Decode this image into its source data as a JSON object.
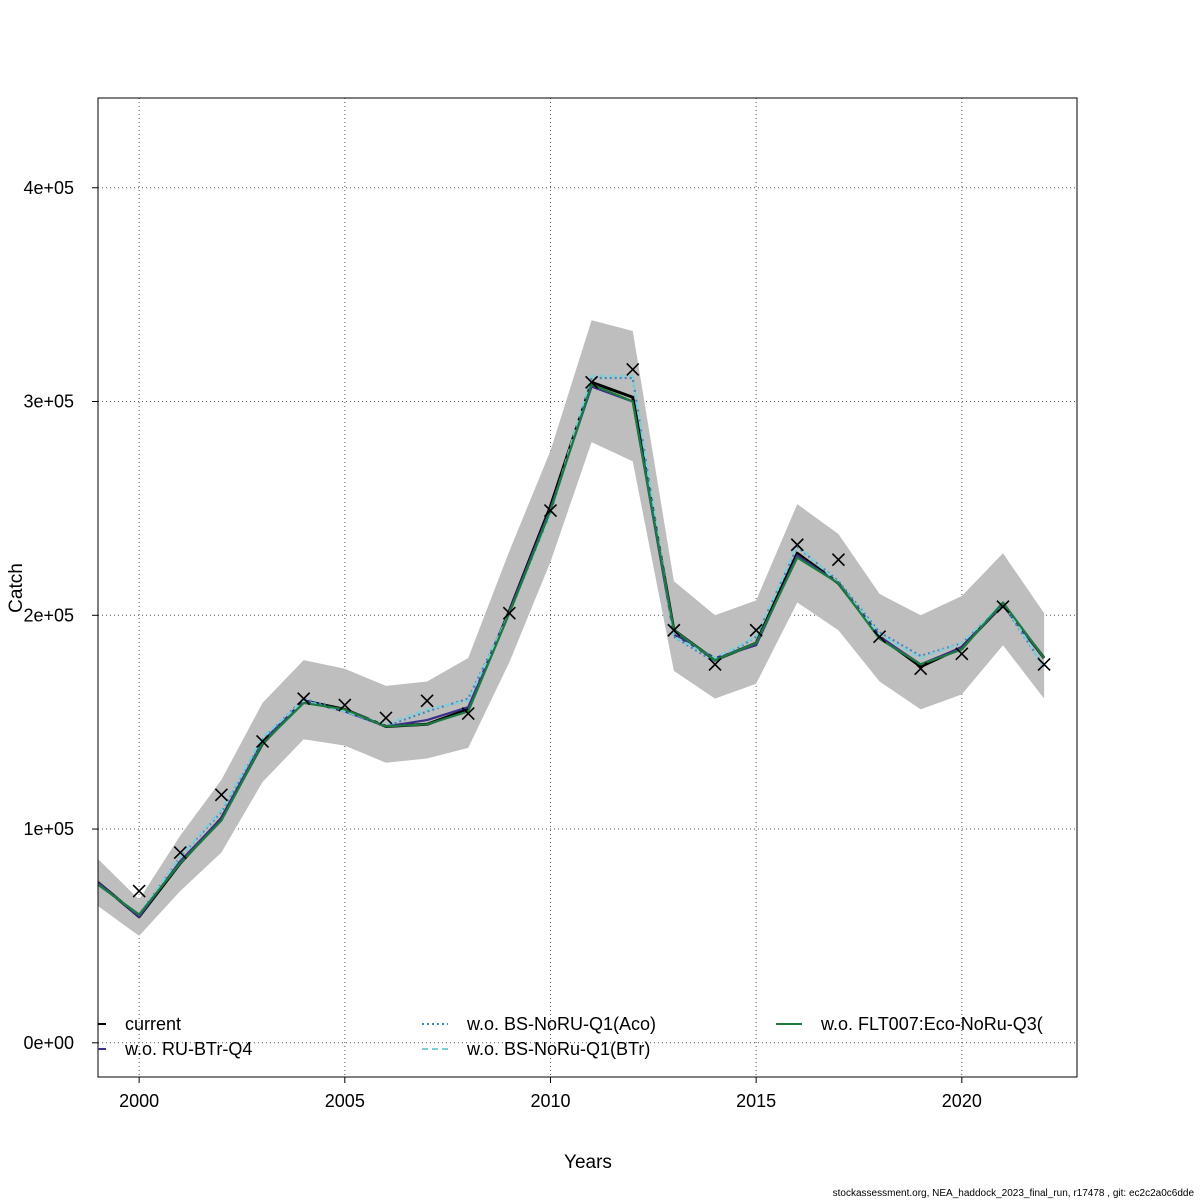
{
  "chart_data": {
    "type": "line",
    "title": "",
    "xlabel": "Years",
    "ylabel": "Catch",
    "xlim": [
      1999,
      2022.8
    ],
    "ylim": [
      -16000,
      442000
    ],
    "x_ticks": [
      2000,
      2005,
      2010,
      2015,
      2020
    ],
    "x_tick_labels": [
      "2000",
      "2005",
      "2010",
      "2015",
      "2020"
    ],
    "y_ticks": [
      0,
      100000,
      200000,
      300000,
      400000
    ],
    "y_tick_labels": [
      "0e+00",
      "1e+05",
      "2e+05",
      "3e+05",
      "4e+05"
    ],
    "grid": true,
    "legend_position": "bottom",
    "x": [
      1999,
      2000,
      2001,
      2002,
      2003,
      2004,
      2005,
      2006,
      2007,
      2008,
      2009,
      2010,
      2011,
      2012,
      2013,
      2014,
      2015,
      2016,
      2017,
      2018,
      2019,
      2020,
      2021,
      2022
    ],
    "confidence_band": {
      "color": "#bebebe",
      "upper": [
        86000,
        67000,
        97000,
        123000,
        159000,
        179000,
        175000,
        167000,
        169000,
        180000,
        230000,
        277000,
        338000,
        333000,
        216000,
        200000,
        207000,
        252000,
        238000,
        210000,
        200000,
        209000,
        229000,
        201000
      ],
      "lower": [
        64000,
        50000,
        71000,
        89000,
        122000,
        142000,
        139000,
        131000,
        133000,
        138000,
        178000,
        225000,
        281000,
        272000,
        174000,
        161000,
        168000,
        206000,
        193000,
        169000,
        156000,
        163000,
        186000,
        161000
      ]
    },
    "observations": {
      "marker": "x",
      "x": [
        2000,
        2001,
        2002,
        2003,
        2004,
        2005,
        2006,
        2007,
        2008,
        2009,
        2010,
        2011,
        2012,
        2013,
        2014,
        2015,
        2016,
        2017,
        2018,
        2019,
        2020,
        2021,
        2022
      ],
      "values": [
        71000,
        89000,
        116000,
        141000,
        161000,
        158000,
        152000,
        160000,
        154000,
        201000,
        249000,
        309000,
        315000,
        193000,
        177000,
        193000,
        233000,
        226000,
        190000,
        175000,
        182000,
        204000,
        177000
      ]
    },
    "series": [
      {
        "name": "current",
        "color": "#000000",
        "dash": "solid",
        "values": [
          75000,
          59000,
          84000,
          105000,
          140000,
          160000,
          156000,
          148000,
          149000,
          156000,
          202000,
          251000,
          309000,
          302000,
          193000,
          179000,
          187000,
          229000,
          215000,
          190000,
          176000,
          185000,
          205000,
          180000
        ]
      },
      {
        "name": "w.o. RU-BTr-Q4",
        "color": "#3b2f8a",
        "dash": "solid",
        "values": [
          75000,
          59000,
          85000,
          105000,
          141000,
          160000,
          155000,
          148000,
          151000,
          157000,
          202000,
          250000,
          307000,
          300000,
          191000,
          180000,
          186000,
          228000,
          215000,
          190000,
          177000,
          185000,
          205000,
          180000
        ]
      },
      {
        "name": "w.o. BS-NoRU-Q1(Aco)",
        "color": "#3a88c4",
        "dash": "dotted",
        "values": [
          74000,
          60000,
          87000,
          108000,
          142000,
          161000,
          155000,
          148000,
          155000,
          161000,
          201000,
          248000,
          311000,
          311000,
          190000,
          178000,
          190000,
          232000,
          216000,
          192000,
          181000,
          187000,
          205000,
          176000
        ]
      },
      {
        "name": "w.o. BS-NoRu-Q1(BTr)",
        "color": "#7ecfd6",
        "dash": "dashed",
        "values": [
          74000,
          60000,
          87000,
          109000,
          143000,
          160000,
          155000,
          149000,
          156000,
          160000,
          201000,
          248000,
          312000,
          312000,
          190000,
          180000,
          190000,
          233000,
          215000,
          191000,
          180000,
          187000,
          206000,
          176000
        ]
      },
      {
        "name": "w.o. FLT007:Eco-NoRu-Q3(",
        "color": "#1b7a3e",
        "dash": "solid",
        "values": [
          74000,
          60000,
          84000,
          104000,
          140000,
          159000,
          156000,
          148000,
          149000,
          155000,
          201000,
          249000,
          308000,
          300000,
          193000,
          179000,
          187000,
          227000,
          215000,
          189000,
          177000,
          184000,
          206000,
          180000
        ]
      }
    ]
  },
  "footer": "stockassessment.org, NEA_haddock_2023_final_run, r17478 , git: ec2c2a0c6dde"
}
